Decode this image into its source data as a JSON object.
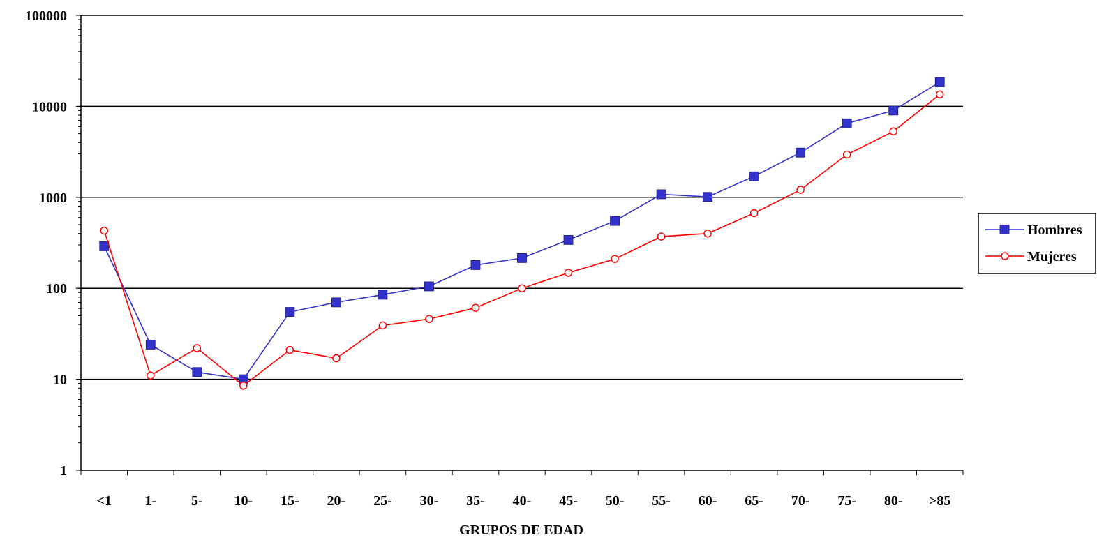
{
  "chart_data": {
    "type": "line",
    "xlabel": "GRUPOS DE EDAD",
    "ylabel": "",
    "y_scale": "log",
    "ylim": [
      1,
      100000
    ],
    "y_ticks": [
      "1",
      "10",
      "100",
      "1000",
      "10000",
      "100000"
    ],
    "y_tick_values": [
      1,
      10,
      100,
      1000,
      10000,
      100000
    ],
    "grid": "horizontal major lines",
    "legend_position": "right",
    "categories": [
      "<1",
      "1-",
      "5-",
      "10-",
      "15-",
      "20-",
      "25-",
      "30-",
      "35-",
      "40-",
      "45-",
      "50-",
      "55-",
      "60-",
      "65-",
      "70-",
      "75-",
      "80-",
      ">85"
    ],
    "series": [
      {
        "name": "Hombres",
        "color": "#3333cc",
        "marker": "filled-square",
        "values": [
          290,
          24,
          12,
          10,
          55,
          70,
          85,
          105,
          180,
          215,
          340,
          550,
          1080,
          1010,
          1700,
          3100,
          6500,
          9000,
          18500
        ]
      },
      {
        "name": "Mujeres",
        "color": "#ff0000",
        "marker": "open-circle",
        "values": [
          430,
          11,
          22,
          8.5,
          21,
          17,
          39,
          46,
          61,
          100,
          148,
          210,
          370,
          400,
          670,
          1210,
          2950,
          5300,
          13500
        ]
      }
    ]
  }
}
